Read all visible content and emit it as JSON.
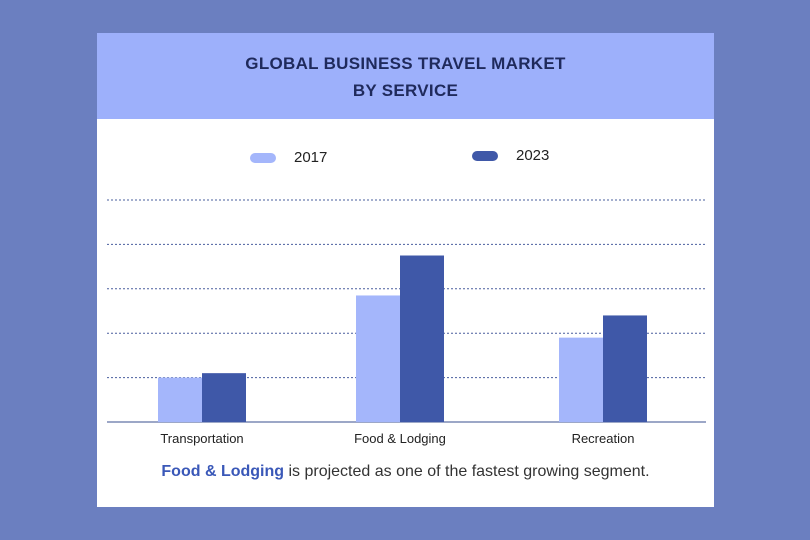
{
  "title_line1": "GLOBAL BUSINESS TRAVEL MARKET",
  "title_line2": "BY SERVICE",
  "footer": {
    "highlight": "Food & Lodging",
    "rest": " is projected as one of the fastest growing segment."
  },
  "colors": {
    "background": "#6b7fc0",
    "header": "#9db0fb",
    "series_2017": "#a4b6fb",
    "series_2023": "#3f58a8"
  },
  "chart_data": {
    "type": "bar",
    "title": "GLOBAL BUSINESS TRAVEL MARKET BY SERVICE",
    "categories": [
      "Transportation",
      "Food & Lodging",
      "Recreation"
    ],
    "series": [
      {
        "name": "2017",
        "values": [
          1.0,
          2.85,
          1.9
        ]
      },
      {
        "name": "2023",
        "values": [
          1.1,
          3.75,
          2.4
        ]
      }
    ],
    "ylim": [
      0,
      5
    ],
    "grid": true,
    "y_tick_labels": false,
    "legend": "top"
  }
}
